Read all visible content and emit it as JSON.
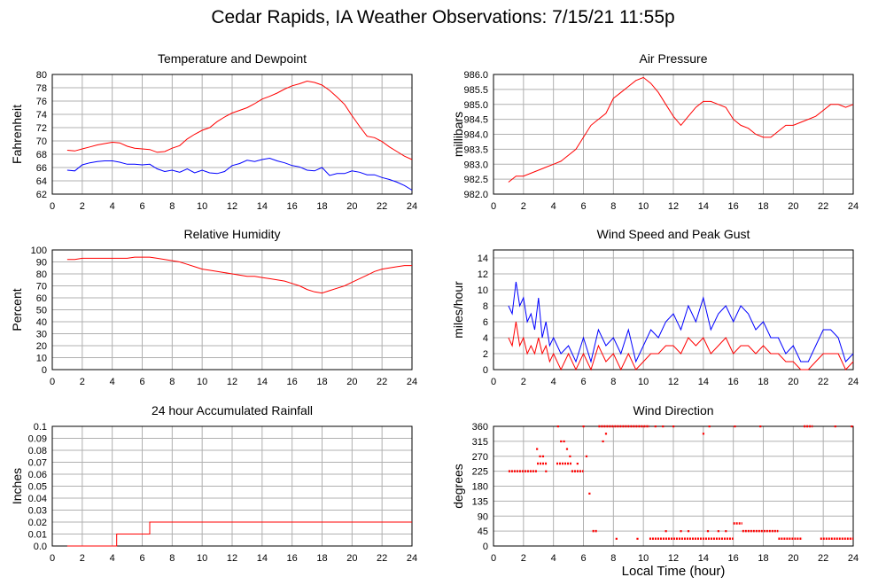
{
  "page": {
    "title": "Cedar Rapids, IA Weather Observations: 7/15/21 11:55p",
    "xlabel": "Local Time (hour)"
  },
  "colors": {
    "red": "#ff0000",
    "blue": "#0000ff",
    "grid": "#b0b0b0"
  },
  "chart_data": [
    {
      "id": "temp",
      "type": "line",
      "title": "Temperature and Dewpoint",
      "ylabel": "Fahrenheit",
      "xlim": [
        0,
        24
      ],
      "ylim": [
        62,
        80
      ],
      "xticks": [
        0,
        2,
        4,
        6,
        8,
        10,
        12,
        14,
        16,
        18,
        20,
        22,
        24
      ],
      "yticks": [
        62,
        64,
        66,
        68,
        70,
        72,
        74,
        76,
        78,
        80
      ],
      "grid": true,
      "series": [
        {
          "color": "#ff0000",
          "x": [
            1,
            1.5,
            2,
            2.5,
            3,
            3.5,
            4,
            4.5,
            5,
            5.5,
            6,
            6.5,
            7,
            7.5,
            8,
            8.5,
            9,
            9.5,
            10,
            10.5,
            11,
            11.5,
            12,
            12.5,
            13,
            13.5,
            14,
            14.5,
            15,
            15.5,
            16,
            16.5,
            17,
            17.5,
            18,
            18.5,
            19,
            19.5,
            20,
            20.5,
            21,
            21.5,
            22,
            22.5,
            23,
            23.5,
            24
          ],
          "y": [
            68.6,
            68.5,
            68.8,
            69.1,
            69.4,
            69.6,
            69.8,
            69.7,
            69.2,
            68.9,
            68.8,
            68.7,
            68.3,
            68.4,
            68.9,
            69.3,
            70.3,
            71.0,
            71.6,
            72.0,
            72.9,
            73.6,
            74.2,
            74.6,
            75.0,
            75.6,
            76.3,
            76.7,
            77.2,
            77.8,
            78.3,
            78.6,
            79.0,
            78.8,
            78.4,
            77.6,
            76.6,
            75.5,
            73.8,
            72.2,
            70.7,
            70.5,
            69.9,
            69.1,
            68.4,
            67.7,
            67.2
          ]
        },
        {
          "color": "#0000ff",
          "x": [
            1,
            1.5,
            2,
            2.5,
            3,
            3.5,
            4,
            4.5,
            5,
            5.5,
            6,
            6.5,
            7,
            7.5,
            8,
            8.5,
            9,
            9.5,
            10,
            10.5,
            11,
            11.5,
            12,
            12.5,
            13,
            13.5,
            14,
            14.5,
            15,
            15.5,
            16,
            16.5,
            17,
            17.5,
            18,
            18.5,
            19,
            19.5,
            20,
            20.5,
            21,
            21.5,
            22,
            22.5,
            23,
            23.5,
            24
          ],
          "y": [
            65.6,
            65.5,
            66.4,
            66.7,
            66.9,
            67.0,
            67.0,
            66.8,
            66.5,
            66.5,
            66.4,
            66.5,
            65.8,
            65.4,
            65.6,
            65.3,
            65.8,
            65.2,
            65.6,
            65.2,
            65.1,
            65.4,
            66.3,
            66.6,
            67.1,
            66.9,
            67.2,
            67.4,
            67.0,
            66.7,
            66.3,
            66.1,
            65.6,
            65.5,
            66.0,
            64.8,
            65.1,
            65.1,
            65.5,
            65.3,
            64.9,
            64.9,
            64.5,
            64.2,
            63.8,
            63.3,
            62.6
          ]
        }
      ]
    },
    {
      "id": "pressure",
      "type": "line",
      "title": "Air Pressure",
      "ylabel": "millibars",
      "xlim": [
        0,
        24
      ],
      "ylim": [
        982.0,
        986.0
      ],
      "xticks": [
        0,
        2,
        4,
        6,
        8,
        10,
        12,
        14,
        16,
        18,
        20,
        22,
        24
      ],
      "yticks": [
        982.0,
        982.5,
        983.0,
        983.5,
        984.0,
        984.5,
        985.0,
        985.5,
        986.0
      ],
      "ytick_labels": [
        "982.0",
        "982.5",
        "983.0",
        "983.5",
        "984.0",
        "984.5",
        "985.0",
        "985.5",
        "986.0"
      ],
      "grid": true,
      "series": [
        {
          "color": "#ff0000",
          "x": [
            1,
            1.5,
            2,
            2.5,
            3,
            3.5,
            4,
            4.5,
            5,
            5.5,
            6,
            6.5,
            7,
            7.5,
            8,
            8.5,
            9,
            9.5,
            10,
            10.5,
            11,
            11.5,
            12,
            12.5,
            13,
            13.5,
            14,
            14.5,
            15,
            15.5,
            16,
            16.5,
            17,
            17.5,
            18,
            18.5,
            19,
            19.5,
            20,
            20.5,
            21,
            21.5,
            22,
            22.5,
            23,
            23.5,
            24
          ],
          "y": [
            982.4,
            982.6,
            982.6,
            982.7,
            982.8,
            982.9,
            983.0,
            983.1,
            983.3,
            983.5,
            983.9,
            984.3,
            984.5,
            984.7,
            985.2,
            985.4,
            985.6,
            985.8,
            985.9,
            985.7,
            985.4,
            985.0,
            984.6,
            984.3,
            984.6,
            984.9,
            985.1,
            985.1,
            985.0,
            984.9,
            984.5,
            984.3,
            984.2,
            984.0,
            983.9,
            983.9,
            984.1,
            984.3,
            984.3,
            984.4,
            984.5,
            984.6,
            984.8,
            985.0,
            985.0,
            984.9,
            985.0
          ]
        }
      ]
    },
    {
      "id": "humidity",
      "type": "line",
      "title": "Relative Humidity",
      "ylabel": "Percent",
      "xlim": [
        0,
        24
      ],
      "ylim": [
        0,
        100
      ],
      "xticks": [
        0,
        2,
        4,
        6,
        8,
        10,
        12,
        14,
        16,
        18,
        20,
        22,
        24
      ],
      "yticks": [
        0,
        10,
        20,
        30,
        40,
        50,
        60,
        70,
        80,
        90,
        100
      ],
      "grid": true,
      "series": [
        {
          "color": "#ff0000",
          "x": [
            1,
            1.5,
            2,
            2.5,
            3,
            3.5,
            4,
            4.5,
            5,
            5.5,
            6,
            6.5,
            7,
            7.5,
            8,
            8.5,
            9,
            9.5,
            10,
            10.5,
            11,
            11.5,
            12,
            12.5,
            13,
            13.5,
            14,
            14.5,
            15,
            15.5,
            16,
            16.5,
            17,
            17.5,
            18,
            18.5,
            19,
            19.5,
            20,
            20.5,
            21,
            21.5,
            22,
            22.5,
            23,
            23.5,
            24
          ],
          "y": [
            92,
            92,
            93,
            93,
            93,
            93,
            93,
            93,
            93,
            94,
            94,
            94,
            93,
            92,
            91,
            90,
            88,
            86,
            84,
            83,
            82,
            81,
            80,
            79,
            78,
            78,
            77,
            76,
            75,
            74,
            72,
            70,
            67,
            65,
            64,
            66,
            68,
            70,
            73,
            76,
            79,
            82,
            84,
            85,
            86,
            87,
            87
          ]
        }
      ]
    },
    {
      "id": "wind",
      "type": "line",
      "title": "Wind Speed and Peak Gust",
      "ylabel": "miles/hour",
      "xlim": [
        0,
        24
      ],
      "ylim": [
        0,
        15
      ],
      "xticks": [
        0,
        2,
        4,
        6,
        8,
        10,
        12,
        14,
        16,
        18,
        20,
        22,
        24
      ],
      "yticks": [
        0,
        2,
        4,
        6,
        8,
        10,
        12,
        14
      ],
      "grid": true,
      "series": [
        {
          "color": "#0000ff",
          "x": [
            1,
            1.25,
            1.5,
            1.75,
            2,
            2.25,
            2.5,
            2.75,
            3,
            3.25,
            3.5,
            3.75,
            4,
            4.5,
            5,
            5.5,
            6,
            6.5,
            7,
            7.5,
            8,
            8.5,
            9,
            9.5,
            10,
            10.5,
            11,
            11.5,
            12,
            12.5,
            13,
            13.5,
            14,
            14.5,
            15,
            15.5,
            16,
            16.5,
            17,
            17.5,
            18,
            18.5,
            19,
            19.5,
            20,
            20.5,
            21,
            21.5,
            22,
            22.5,
            23,
            23.5,
            24
          ],
          "y": [
            8,
            7,
            11,
            8,
            9,
            6,
            7,
            5,
            9,
            4,
            6,
            3,
            4,
            2,
            3,
            1,
            4,
            1,
            5,
            3,
            4,
            2,
            5,
            1,
            3,
            5,
            4,
            6,
            7,
            5,
            8,
            6,
            9,
            5,
            7,
            8,
            6,
            8,
            7,
            5,
            6,
            4,
            4,
            2,
            3,
            1,
            1,
            3,
            5,
            5,
            4,
            1,
            2
          ]
        },
        {
          "color": "#ff0000",
          "x": [
            1,
            1.25,
            1.5,
            1.75,
            2,
            2.25,
            2.5,
            2.75,
            3,
            3.25,
            3.5,
            3.75,
            4,
            4.5,
            5,
            5.5,
            6,
            6.5,
            7,
            7.5,
            8,
            8.5,
            9,
            9.5,
            10,
            10.5,
            11,
            11.5,
            12,
            12.5,
            13,
            13.5,
            14,
            14.5,
            15,
            15.5,
            16,
            16.5,
            17,
            17.5,
            18,
            18.5,
            19,
            19.5,
            20,
            20.5,
            21,
            21.5,
            22,
            22.5,
            23,
            23.5,
            24
          ],
          "y": [
            4,
            3,
            6,
            3,
            4,
            2,
            3,
            2,
            4,
            2,
            3,
            1,
            2,
            0,
            2,
            0,
            2,
            0,
            3,
            1,
            2,
            0,
            2,
            0,
            1,
            2,
            2,
            3,
            3,
            2,
            4,
            3,
            4,
            2,
            3,
            4,
            2,
            3,
            3,
            2,
            3,
            2,
            2,
            1,
            1,
            0,
            0,
            1,
            2,
            2,
            2,
            0,
            1
          ]
        }
      ]
    },
    {
      "id": "rain",
      "type": "line",
      "title": "24 hour Accumulated Rainfall",
      "ylabel": "Inches",
      "xlim": [
        0,
        24
      ],
      "ylim": [
        0,
        0.1
      ],
      "xticks": [
        0,
        2,
        4,
        6,
        8,
        10,
        12,
        14,
        16,
        18,
        20,
        22,
        24
      ],
      "yticks": [
        0,
        0.01,
        0.02,
        0.03,
        0.04,
        0.05,
        0.06,
        0.07,
        0.08,
        0.09,
        0.1
      ],
      "ytick_labels": [
        "0.0",
        "0.01",
        "0.02",
        "0.03",
        "0.04",
        "0.05",
        "0.06",
        "0.07",
        "0.08",
        "0.09",
        "0.1"
      ],
      "grid": true,
      "series": [
        {
          "color": "#ff0000",
          "x": [
            1,
            4.3,
            4.3,
            6.5,
            6.5,
            24
          ],
          "y": [
            0,
            0,
            0.01,
            0.01,
            0.02,
            0.02
          ]
        }
      ]
    },
    {
      "id": "winddir",
      "type": "scatter",
      "title": "Wind Direction",
      "ylabel": "degrees",
      "xlim": [
        0,
        24
      ],
      "ylim": [
        0,
        360
      ],
      "xticks": [
        0,
        2,
        4,
        6,
        8,
        10,
        12,
        14,
        16,
        18,
        20,
        22,
        24
      ],
      "yticks": [
        0,
        45,
        90,
        135,
        180,
        225,
        270,
        315,
        360
      ],
      "grid": true,
      "series": [
        {
          "color": "#ff0000",
          "segments": [
            {
              "x0": 1.0,
              "x1": 2.9,
              "y": 225
            },
            {
              "x0": 2.9,
              "x1": 3.6,
              "y": 248
            },
            {
              "x0": 4.2,
              "x1": 5.2,
              "y": 248
            },
            {
              "x0": 5.2,
              "x1": 6.0,
              "y": 225
            },
            {
              "x0": 6.6,
              "x1": 6.9,
              "y": 45
            },
            {
              "x0": 7.0,
              "x1": 10.4,
              "y": 360
            },
            {
              "x0": 10.4,
              "x1": 16.0,
              "y": 22
            },
            {
              "x0": 16.0,
              "x1": 16.6,
              "y": 68
            },
            {
              "x0": 16.6,
              "x1": 19.0,
              "y": 45
            },
            {
              "x0": 19.0,
              "x1": 20.6,
              "y": 22
            },
            {
              "x0": 20.7,
              "x1": 21.3,
              "y": 360
            },
            {
              "x0": 21.8,
              "x1": 24.0,
              "y": 22
            }
          ],
          "points": [
            {
              "x": 2.9,
              "y": 292
            },
            {
              "x": 3.1,
              "y": 270
            },
            {
              "x": 3.3,
              "y": 270
            },
            {
              "x": 3.5,
              "y": 225
            },
            {
              "x": 4.3,
              "y": 360
            },
            {
              "x": 4.5,
              "y": 315
            },
            {
              "x": 4.7,
              "y": 315
            },
            {
              "x": 4.9,
              "y": 292
            },
            {
              "x": 5.1,
              "y": 270
            },
            {
              "x": 5.6,
              "y": 248
            },
            {
              "x": 6.0,
              "y": 360
            },
            {
              "x": 6.2,
              "y": 270
            },
            {
              "x": 6.4,
              "y": 158
            },
            {
              "x": 7.3,
              "y": 315
            },
            {
              "x": 7.5,
              "y": 338
            },
            {
              "x": 8.2,
              "y": 22
            },
            {
              "x": 9.6,
              "y": 22
            },
            {
              "x": 10.8,
              "y": 360
            },
            {
              "x": 11.3,
              "y": 360
            },
            {
              "x": 12.0,
              "y": 360
            },
            {
              "x": 14.0,
              "y": 338
            },
            {
              "x": 14.4,
              "y": 360
            },
            {
              "x": 15.0,
              "y": 45
            },
            {
              "x": 16.1,
              "y": 360
            },
            {
              "x": 17.8,
              "y": 360
            },
            {
              "x": 22.8,
              "y": 360
            },
            {
              "x": 23.9,
              "y": 360
            },
            {
              "x": 11.5,
              "y": 45
            },
            {
              "x": 12.5,
              "y": 45
            },
            {
              "x": 13.0,
              "y": 45
            },
            {
              "x": 14.3,
              "y": 45
            },
            {
              "x": 15.5,
              "y": 45
            }
          ]
        }
      ]
    }
  ]
}
